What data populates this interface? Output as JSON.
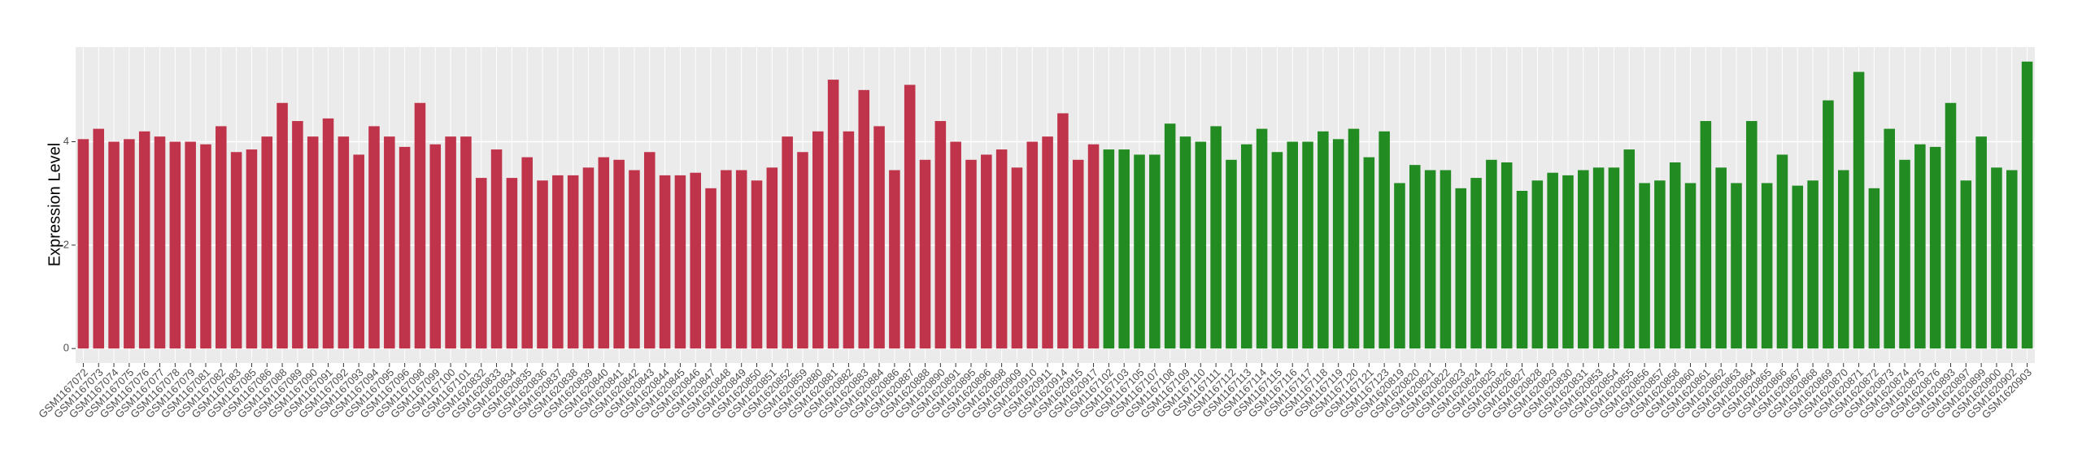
{
  "chart_data": {
    "type": "bar",
    "y_label": "Expression Level",
    "categories": [
      "GSM1167072",
      "GSM1167073",
      "GSM1167074",
      "GSM1167075",
      "GSM1167076",
      "GSM1167077",
      "GSM1167078",
      "GSM1167079",
      "GSM1167081",
      "GSM1167082",
      "GSM1167083",
      "GSM1167085",
      "GSM1167086",
      "GSM1167088",
      "GSM1167089",
      "GSM1167090",
      "GSM1167091",
      "GSM1167092",
      "GSM1167093",
      "GSM1167094",
      "GSM1167095",
      "GSM1167096",
      "GSM1167098",
      "GSM1167099",
      "GSM1167100",
      "GSM1167101",
      "GSM1620832",
      "GSM1620833",
      "GSM1620834",
      "GSM1620835",
      "GSM1620836",
      "GSM1620837",
      "GSM1620838",
      "GSM1620839",
      "GSM1620840",
      "GSM1620841",
      "GSM1620842",
      "GSM1620843",
      "GSM1620844",
      "GSM1620845",
      "GSM1620846",
      "GSM1620847",
      "GSM1620848",
      "GSM1620849",
      "GSM1620850",
      "GSM1620851",
      "GSM1620852",
      "GSM1620859",
      "GSM1620880",
      "GSM1620881",
      "GSM1620882",
      "GSM1620883",
      "GSM1620884",
      "GSM1620886",
      "GSM1620887",
      "GSM1620888",
      "GSM1620890",
      "GSM1620891",
      "GSM1620895",
      "GSM1620896",
      "GSM1620898",
      "GSM1620909",
      "GSM1620910",
      "GSM1620911",
      "GSM1620914",
      "GSM1620915",
      "GSM1620917",
      "GSM1167102",
      "GSM1167103",
      "GSM1167105",
      "GSM1167107",
      "GSM1167108",
      "GSM1167109",
      "GSM1167110",
      "GSM1167111",
      "GSM1167112",
      "GSM1167113",
      "GSM1167114",
      "GSM1167115",
      "GSM1167116",
      "GSM1167117",
      "GSM1167118",
      "GSM1167119",
      "GSM1167120",
      "GSM1167121",
      "GSM1167123",
      "GSM1620819",
      "GSM1620820",
      "GSM1620821",
      "GSM1620822",
      "GSM1620823",
      "GSM1620824",
      "GSM1620825",
      "GSM1620826",
      "GSM1620827",
      "GSM1620828",
      "GSM1620829",
      "GSM1620830",
      "GSM1620831",
      "GSM1620853",
      "GSM1620854",
      "GSM1620855",
      "GSM1620856",
      "GSM1620857",
      "GSM1620858",
      "GSM1620860",
      "GSM1620861",
      "GSM1620862",
      "GSM1620863",
      "GSM1620864",
      "GSM1620865",
      "GSM1620866",
      "GSM1620867",
      "GSM1620868",
      "GSM1620869",
      "GSM1620870",
      "GSM1620871",
      "GSM1620872",
      "GSM1620873",
      "GSM1620874",
      "GSM1620875",
      "GSM1620876",
      "GSM1620893",
      "GSM1620897",
      "GSM1620899",
      "GSM1620900",
      "GSM1620902",
      "GSM1620903"
    ],
    "series": [
      {
        "color": "#c0344b",
        "values": [
          4.05,
          4.25,
          4.0,
          4.05,
          4.2,
          4.1,
          4.0,
          4.0,
          3.95,
          4.3,
          3.8,
          3.85,
          4.1,
          4.75,
          4.4,
          4.1,
          4.45,
          4.1,
          3.75,
          4.3,
          4.1,
          3.9,
          4.75,
          3.95,
          4.1,
          4.1,
          3.3,
          3.85,
          3.3,
          3.7,
          3.25,
          3.35,
          3.35,
          3.5,
          3.7,
          3.65,
          3.45,
          3.8,
          3.35,
          3.35,
          3.4,
          3.1,
          3.45,
          3.45,
          3.25,
          3.5,
          4.1,
          3.8,
          4.2,
          5.2,
          4.2,
          5.0,
          4.3,
          3.45,
          5.1,
          3.65,
          4.4,
          4.0,
          3.65,
          3.75,
          3.85,
          3.5,
          4.0,
          4.1,
          4.55,
          3.65,
          3.95,
          null,
          null,
          null,
          null,
          null,
          null,
          null,
          null,
          null,
          null,
          null,
          null,
          null,
          null,
          null,
          null,
          null,
          null,
          null,
          null,
          null,
          null,
          null,
          null,
          null,
          null,
          null,
          null,
          null,
          null,
          null,
          null,
          null,
          null,
          null,
          null,
          null,
          null,
          null,
          null,
          null,
          null,
          null,
          null,
          null,
          null,
          null,
          null,
          null,
          null,
          null,
          null,
          null,
          null,
          null,
          null,
          null,
          null,
          null,
          null,
          null
        ]
      },
      {
        "color": "#228b22",
        "values": [
          null,
          null,
          null,
          null,
          null,
          null,
          null,
          null,
          null,
          null,
          null,
          null,
          null,
          null,
          null,
          null,
          null,
          null,
          null,
          null,
          null,
          null,
          null,
          null,
          null,
          null,
          null,
          null,
          null,
          null,
          null,
          null,
          null,
          null,
          null,
          null,
          null,
          null,
          null,
          null,
          null,
          null,
          null,
          null,
          null,
          null,
          null,
          null,
          null,
          null,
          null,
          null,
          null,
          null,
          null,
          null,
          null,
          null,
          null,
          null,
          null,
          null,
          null,
          null,
          null,
          null,
          null,
          3.85,
          3.85,
          3.75,
          3.75,
          4.35,
          4.1,
          4.0,
          4.3,
          3.65,
          3.95,
          4.25,
          3.8,
          4.0,
          4.0,
          4.2,
          4.05,
          4.25,
          3.7,
          4.2,
          3.2,
          3.55,
          3.45,
          3.45,
          3.1,
          3.3,
          3.65,
          3.6,
          3.05,
          3.25,
          3.4,
          3.35,
          3.45,
          3.5,
          3.5,
          3.85,
          3.2,
          3.25,
          3.6,
          3.2,
          4.4,
          3.5,
          3.2,
          4.4,
          3.2,
          3.75,
          3.15,
          3.25,
          4.8,
          3.45,
          5.35,
          3.1,
          4.25,
          3.65,
          3.95,
          3.9,
          4.75,
          3.25,
          4.1,
          3.5,
          3.45,
          5.55
        ]
      }
    ],
    "ylim": [
      -0.28,
      5.83
    ],
    "yticks": [
      0,
      2,
      4
    ],
    "grid": true
  }
}
